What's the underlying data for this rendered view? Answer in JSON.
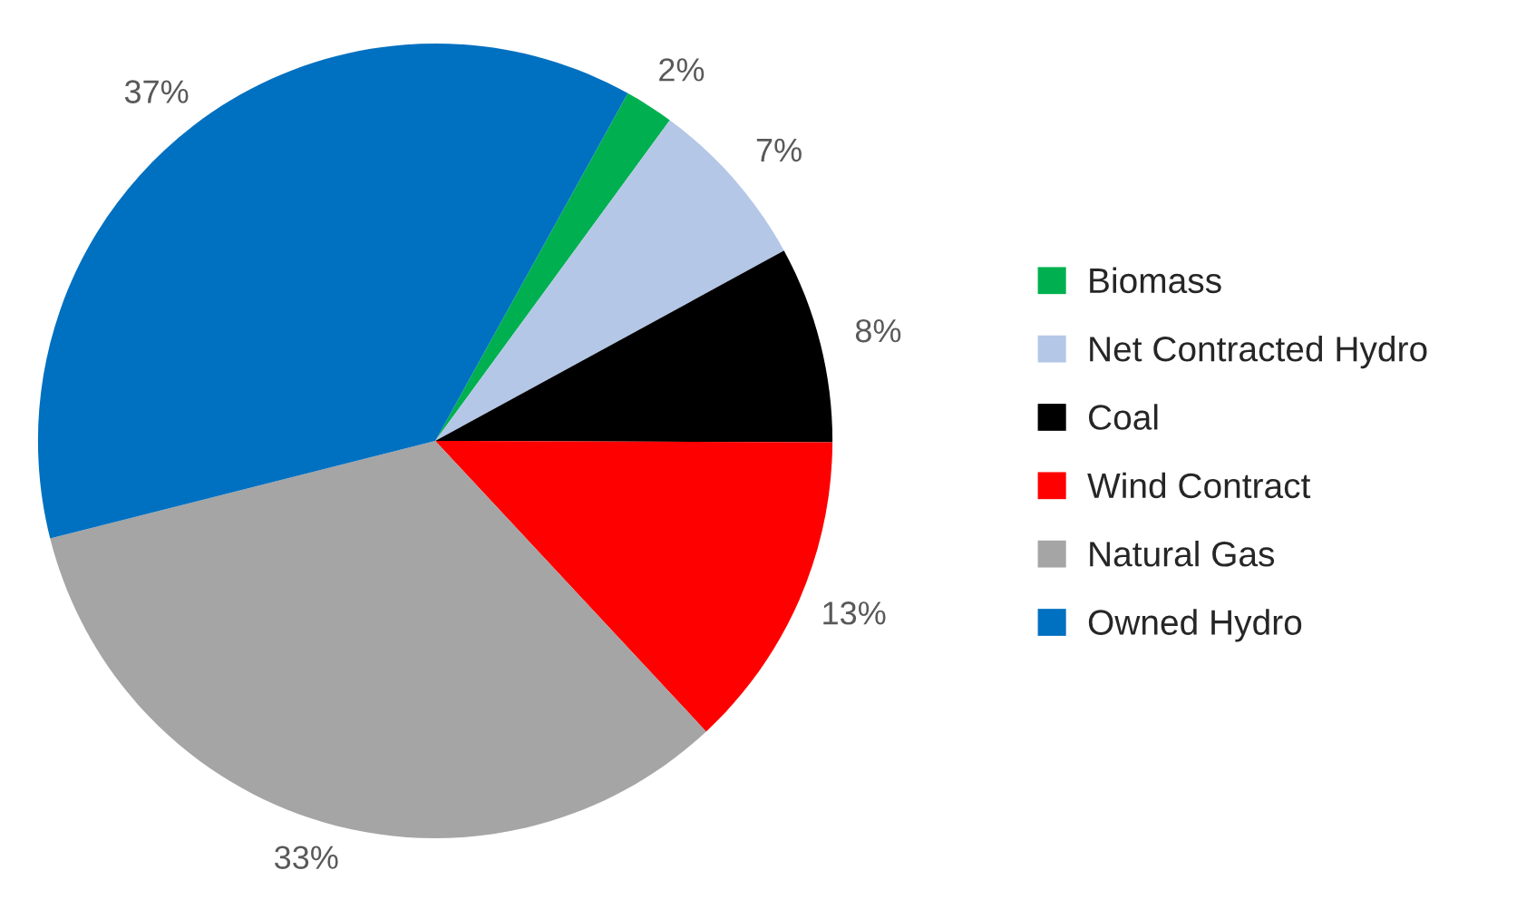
{
  "chart_data": {
    "type": "pie",
    "categories": [
      "Biomass",
      "Net Contracted Hydro",
      "Coal",
      "Wind Contract",
      "Natural Gas",
      "Owned Hydro"
    ],
    "values": [
      2,
      7,
      8,
      13,
      33,
      37
    ],
    "colors": [
      "#00b050",
      "#b4c7e7",
      "#000000",
      "#ff0000",
      "#a5a5a5",
      "#0070c0"
    ],
    "value_labels": [
      "2%",
      "7%",
      "8%",
      "13%",
      "33%",
      "37%"
    ],
    "legend": "right"
  }
}
